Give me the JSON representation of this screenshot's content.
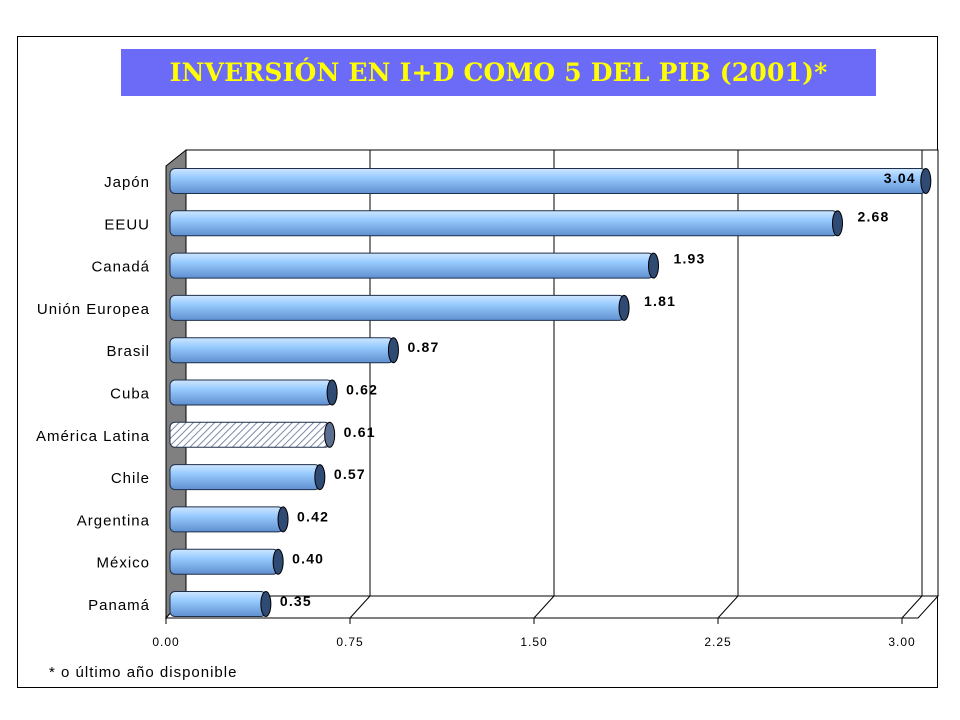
{
  "title": "INVERSIÓN EN I+D COMO 5 DEL PIB (2001)*",
  "footnote": "* o último año disponible",
  "colors": {
    "title_bg": "#6b6bf8",
    "title_text": "#ffff00",
    "bar_fill": "#99ccff",
    "bar_cap": "#2f4a73",
    "highlight_pattern": "hatched"
  },
  "chart_data": {
    "type": "bar",
    "orientation": "horizontal",
    "title": "INVERSIÓN EN I+D COMO 5 DEL PIB (2001)*",
    "categories": [
      "Japón",
      "EEUU",
      "Canadá",
      "Unión Europea",
      "Brasil",
      "Cuba",
      "América Latina",
      "Chile",
      "Argentina",
      "México",
      "Panamá"
    ],
    "values": [
      3.04,
      2.68,
      1.93,
      1.81,
      0.87,
      0.62,
      0.61,
      0.57,
      0.42,
      0.4,
      0.35
    ],
    "value_labels": [
      "3.04",
      "2.68",
      "1.93",
      "1.81",
      "0.87",
      "0.62",
      "0.61",
      "0.57",
      "0.42",
      "0.40",
      "0.35"
    ],
    "highlighted_category": "América Latina",
    "xlim": [
      0,
      3.0
    ],
    "xticks": [
      0,
      0.75,
      1.5,
      2.25,
      3.0
    ],
    "xtick_labels": [
      "0.00",
      "0.75",
      "1.50",
      "2.25",
      "3.00"
    ],
    "grid": "vertical",
    "style": "3d-cylinder",
    "xlabel": "",
    "ylabel": ""
  }
}
